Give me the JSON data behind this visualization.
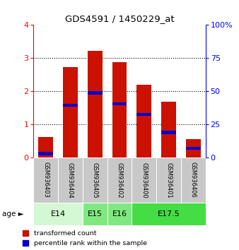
{
  "title": "GDS4591 / 1450229_at",
  "samples": [
    "GSM936403",
    "GSM936404",
    "GSM936405",
    "GSM936402",
    "GSM936400",
    "GSM936401",
    "GSM936406"
  ],
  "red_values": [
    0.62,
    2.72,
    3.22,
    2.88,
    2.2,
    1.68,
    0.55
  ],
  "blue_values": [
    0.12,
    1.58,
    1.95,
    1.62,
    1.3,
    0.75,
    0.28
  ],
  "age_groups": [
    {
      "label": "E14",
      "cols": [
        0,
        1
      ],
      "color": "#d4f7d4"
    },
    {
      "label": "E15",
      "cols": [
        2
      ],
      "color": "#80e880"
    },
    {
      "label": "E16",
      "cols": [
        3
      ],
      "color": "#80e880"
    },
    {
      "label": "E17.5",
      "cols": [
        4,
        5,
        6
      ],
      "color": "#44dd44"
    }
  ],
  "ylim_left": [
    0,
    4
  ],
  "ylim_right": [
    0,
    100
  ],
  "yticks_left": [
    0,
    1,
    2,
    3,
    4
  ],
  "yticks_right": [
    0,
    25,
    50,
    75,
    100
  ],
  "bar_width": 0.6,
  "red_color": "#cc1100",
  "blue_color": "#0000cc",
  "bg_plot": "#ffffff",
  "bg_sample": "#c8c8c8",
  "legend_red": "transformed count",
  "legend_blue": "percentile rank within the sample"
}
